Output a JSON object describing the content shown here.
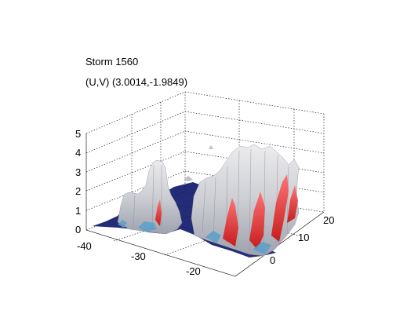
{
  "chart_data": {
    "type": "surface",
    "title": "Storm 1560",
    "subtitle": "(U,V) (3.0014,-1.9849)",
    "xlabel": "",
    "ylabel": "",
    "zlabel": "",
    "xlim": [
      -40,
      -15
    ],
    "ylim": [
      0,
      22
    ],
    "zlim": [
      0,
      5
    ],
    "x_ticks": [
      -40,
      -30,
      -20
    ],
    "y_ticks": [
      0,
      10,
      20
    ],
    "z_ticks": [
      0,
      1,
      2,
      3,
      4,
      5
    ],
    "grid": true,
    "box": true,
    "colormap_levels": [
      {
        "level": "base",
        "color": "#101a6a"
      },
      {
        "level": "low",
        "color": "#5fa0c8"
      },
      {
        "level": "mid",
        "color": "#c8c8cc"
      },
      {
        "level": "high",
        "color": "#e02020"
      }
    ],
    "peaks": [
      {
        "x": -33,
        "y": 12,
        "z": 3.7
      },
      {
        "x": -36,
        "y": 8,
        "z": 2.0
      },
      {
        "x": -26,
        "y": 18,
        "z": 3.8
      },
      {
        "x": -20,
        "y": 14,
        "z": 4.3
      },
      {
        "x": -18,
        "y": 10,
        "z": 4.6
      },
      {
        "x": -16,
        "y": 5,
        "z": 3.6
      },
      {
        "x": -22,
        "y": 6,
        "z": 3.0
      }
    ]
  }
}
